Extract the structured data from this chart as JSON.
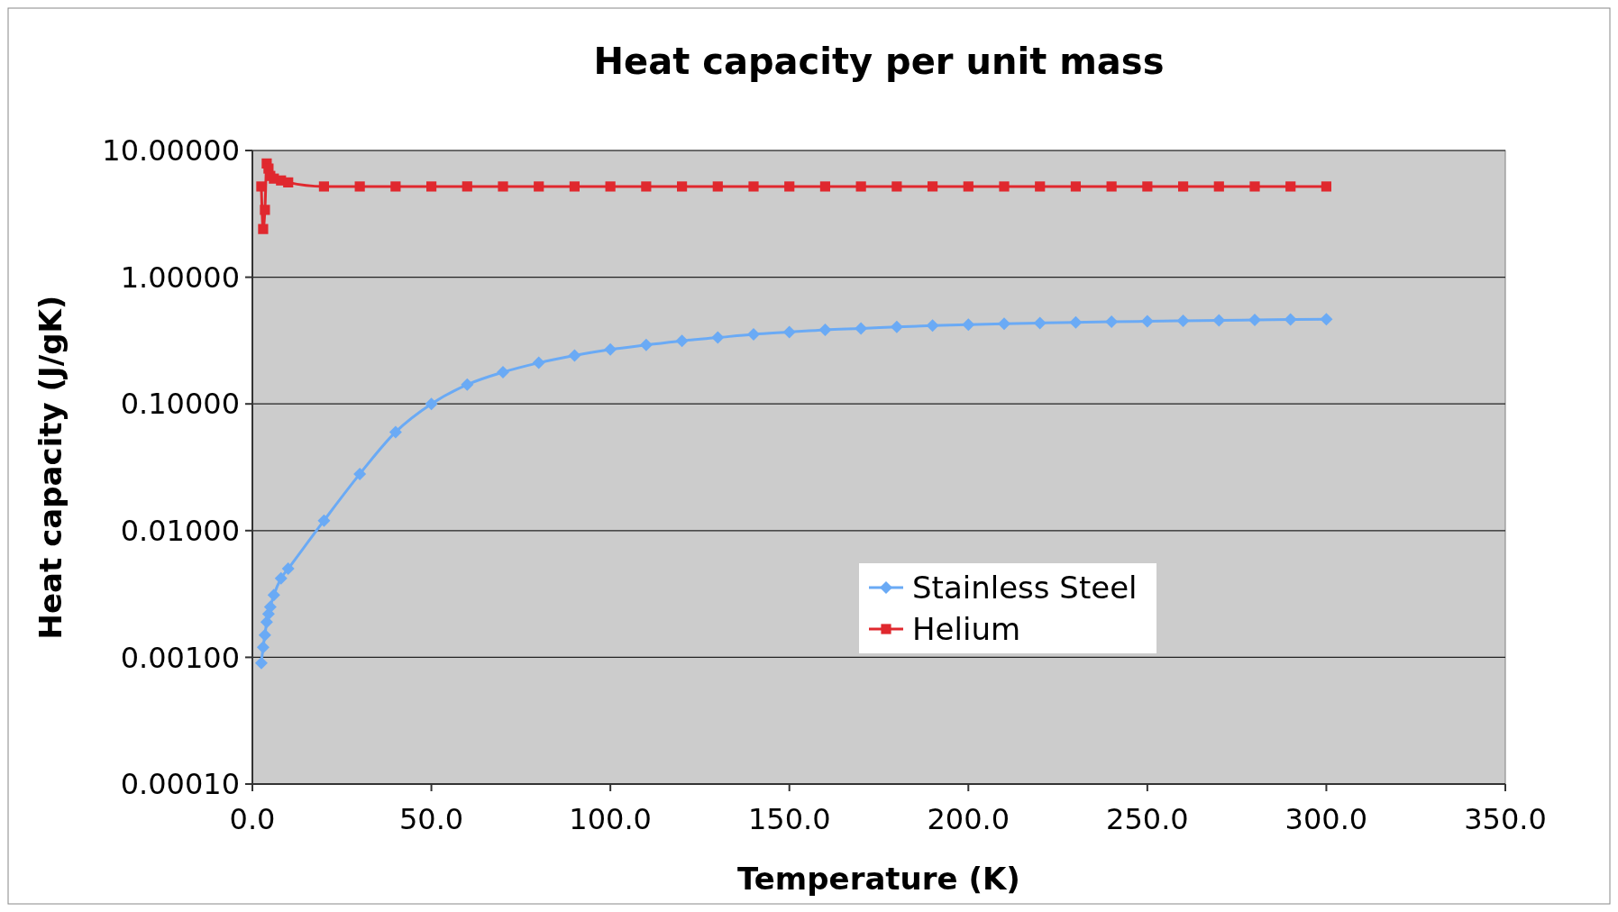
{
  "chart_data": {
    "type": "line",
    "title": "Heat capacity per unit mass",
    "xlabel": "Temperature (K)",
    "ylabel": "Heat capacity (J/gK)",
    "log": "y",
    "grid": "y",
    "legend": "bottom",
    "line_style": "solid",
    "xlim": [
      0,
      350
    ],
    "xticks": [
      {
        "value": 0,
        "label": "0.0"
      },
      {
        "value": 50,
        "label": "50.0"
      },
      {
        "value": 100,
        "label": "100.0"
      },
      {
        "value": 150,
        "label": "150.0"
      },
      {
        "value": 200,
        "label": "200.0"
      },
      {
        "value": 250,
        "label": "250.0"
      },
      {
        "value": 300,
        "label": "300.0"
      },
      {
        "value": 350,
        "label": "350.0"
      }
    ],
    "ylim": [
      0.0001,
      10
    ],
    "yticks": [
      {
        "value": 0.0001,
        "label": "0.00010"
      },
      {
        "value": 0.001,
        "label": "0.00100"
      },
      {
        "value": 0.01,
        "label": "0.01000"
      },
      {
        "value": 0.1,
        "label": "0.10000"
      },
      {
        "value": 1,
        "label": "1.00000"
      },
      {
        "value": 10,
        "label": "10.00000"
      }
    ],
    "series": [
      {
        "name": "Stainless Steel",
        "color": "#6aaaf5",
        "marker": "diamond",
        "x": [
          2.5,
          3,
          3.5,
          4,
          4.5,
          5,
          6,
          8,
          10,
          20,
          30,
          40,
          50,
          60,
          70,
          80,
          90,
          100,
          110,
          120,
          130,
          140,
          150,
          160,
          170,
          180,
          190,
          200,
          210,
          220,
          230,
          240,
          250,
          260,
          270,
          280,
          290,
          300
        ],
        "values": [
          0.0009,
          0.0012,
          0.0015,
          0.0019,
          0.0022,
          0.0025,
          0.0031,
          0.0042,
          0.005,
          0.012,
          0.028,
          0.06,
          0.1,
          0.142,
          0.178,
          0.211,
          0.241,
          0.269,
          0.292,
          0.315,
          0.334,
          0.354,
          0.369,
          0.385,
          0.394,
          0.405,
          0.415,
          0.423,
          0.43,
          0.435,
          0.44,
          0.445,
          0.449,
          0.453,
          0.457,
          0.46,
          0.463,
          0.466
        ]
      },
      {
        "name": "Helium",
        "color": "#e0282e",
        "marker": "square",
        "x": [
          2.5,
          3,
          3.5,
          4,
          4.5,
          5,
          6,
          8,
          10,
          20,
          30,
          40,
          50,
          60,
          70,
          80,
          90,
          100,
          110,
          120,
          130,
          140,
          150,
          160,
          170,
          180,
          190,
          200,
          210,
          220,
          230,
          240,
          250,
          260,
          270,
          280,
          290,
          300
        ],
        "values": [
          5.2,
          2.4,
          3.4,
          7.9,
          7.2,
          6.3,
          6,
          5.8,
          5.6,
          5.2,
          5.2,
          5.2,
          5.2,
          5.2,
          5.2,
          5.2,
          5.2,
          5.2,
          5.2,
          5.2,
          5.2,
          5.2,
          5.2,
          5.2,
          5.2,
          5.2,
          5.2,
          5.2,
          5.2,
          5.2,
          5.2,
          5.2,
          5.2,
          5.2,
          5.2,
          5.2,
          5.2,
          5.2
        ]
      }
    ]
  }
}
